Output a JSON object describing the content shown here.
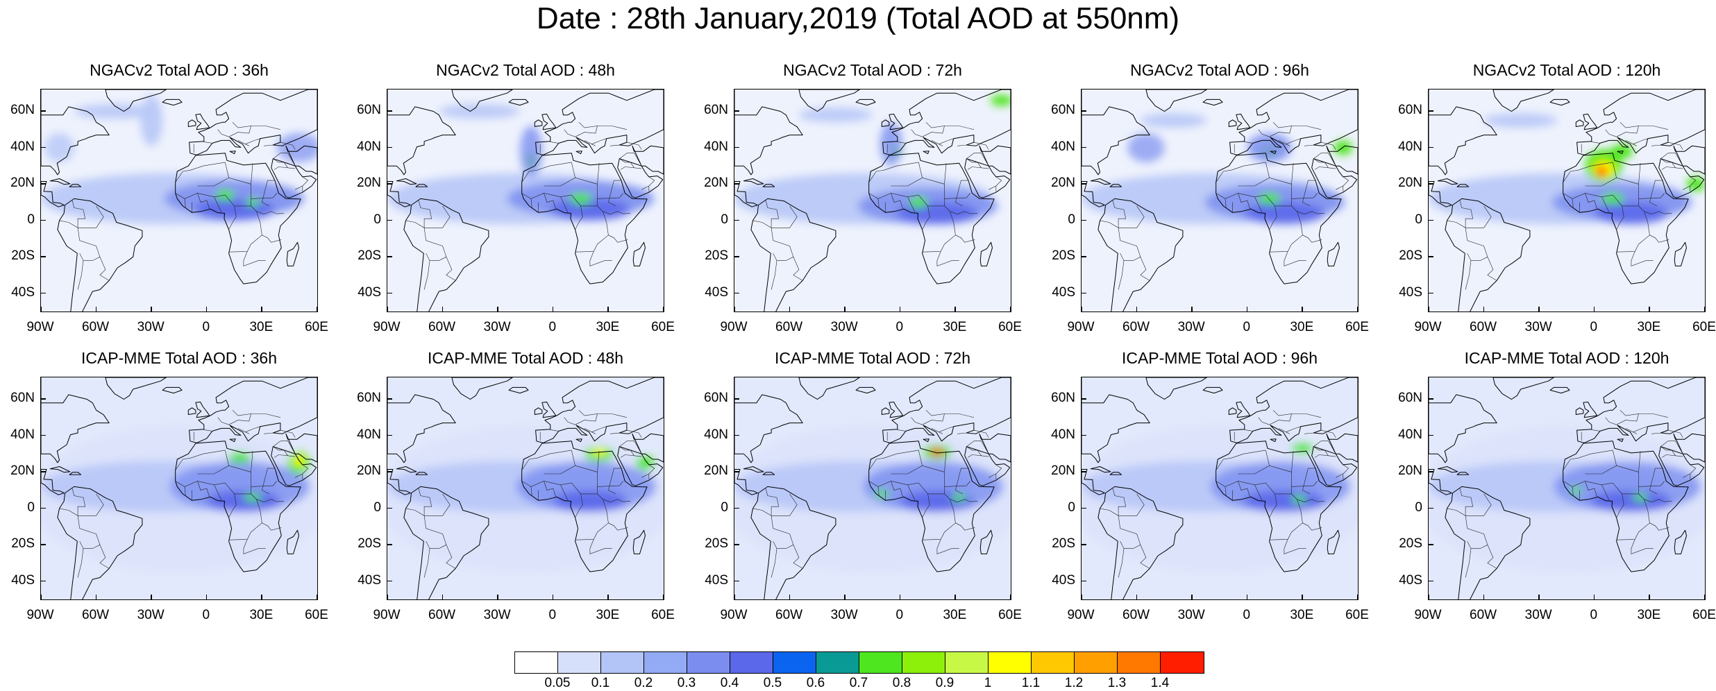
{
  "title": "Date : 28th January,2019 (Total AOD at 550nm)",
  "lat_ticks": [
    "60N",
    "40N",
    "20N",
    "0",
    "20S",
    "40S"
  ],
  "lat_values": [
    60,
    40,
    20,
    0,
    -20,
    -40
  ],
  "lon_ticks": [
    "90W",
    "60W",
    "30W",
    "0",
    "30E",
    "60E"
  ],
  "lon_values": [
    -90,
    -60,
    -30,
    0,
    30,
    60
  ],
  "map_extent": {
    "lon": [
      -90,
      60
    ],
    "lat": [
      -50,
      72
    ]
  },
  "rows": [
    {
      "model": "NGACv2",
      "panels": [
        {
          "title": "NGACv2 Total AOD : 36h",
          "lead": "36h"
        },
        {
          "title": "NGACv2 Total AOD : 48h",
          "lead": "48h"
        },
        {
          "title": "NGACv2 Total AOD : 72h",
          "lead": "72h"
        },
        {
          "title": "NGACv2 Total AOD : 96h",
          "lead": "96h"
        },
        {
          "title": "NGACv2 Total AOD : 120h",
          "lead": "120h"
        }
      ]
    },
    {
      "model": "ICAP-MME",
      "panels": [
        {
          "title": "ICAP-MME Total AOD : 36h",
          "lead": "36h"
        },
        {
          "title": "ICAP-MME Total AOD : 48h",
          "lead": "48h"
        },
        {
          "title": "ICAP-MME Total AOD : 72h",
          "lead": "72h"
        },
        {
          "title": "ICAP-MME Total AOD : 96h",
          "lead": "96h"
        },
        {
          "title": "ICAP-MME Total AOD : 120h",
          "lead": "120h"
        }
      ]
    }
  ],
  "colorbar": {
    "labels": [
      "0.05",
      "0.1",
      "0.2",
      "0.3",
      "0.4",
      "0.5",
      "0.6",
      "0.7",
      "0.8",
      "0.9",
      "1",
      "1.1",
      "1.2",
      "1.3",
      "1.4"
    ],
    "colors": [
      "#ffffff",
      "#d7e0fb",
      "#b3c4f7",
      "#93aaf4",
      "#7b8ef0",
      "#5b68ea",
      "#0a64f0",
      "#0a9a96",
      "#4ee61e",
      "#8cf00a",
      "#c8f846",
      "#ffff00",
      "#ffc800",
      "#ffa000",
      "#ff7800",
      "#ff1e00"
    ]
  },
  "styles": {
    "ocean_light": "#dbe3fb",
    "ocean_mid": "#b7c7f7",
    "aod_blue": "#7b8ef0",
    "aod_dark": "#5b68ea",
    "aod_green": "#4ee61e",
    "aod_yellow": "#ffff00",
    "aod_red": "#ff1e00"
  }
}
